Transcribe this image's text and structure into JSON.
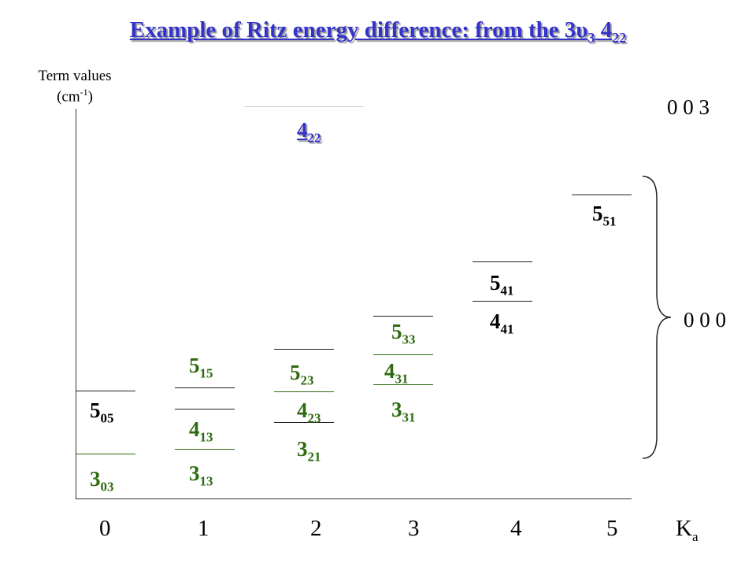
{
  "title": {
    "main": "Example of Ritz energy difference: from the 3υ",
    "sub1": "3",
    "mid": " 4",
    "sub2": "22"
  },
  "axis": {
    "title": "Term values",
    "unit_open": "(cm",
    "unit_sup": "-1",
    "unit_close": ")",
    "xlabel_main": "K",
    "xlabel_sub": "a"
  },
  "ticks": [
    "0",
    "1",
    "2",
    "3",
    "4",
    "5"
  ],
  "vibrational_states": {
    "upper": "0 0 3",
    "ground": "0 0 0"
  },
  "levels": [
    {
      "j": "4",
      "kakc": "22",
      "ka": 2,
      "state": "0 0 3"
    },
    {
      "j": "5",
      "kakc": "51",
      "ka": 5,
      "state": "0 0 0"
    },
    {
      "j": "5",
      "kakc": "41",
      "ka": 4,
      "state": "0 0 0"
    },
    {
      "j": "4",
      "kakc": "41",
      "ka": 4,
      "state": "0 0 0"
    },
    {
      "j": "5",
      "kakc": "33",
      "ka": 3,
      "state": "0 0 0"
    },
    {
      "j": "4",
      "kakc": "31",
      "ka": 3,
      "state": "0 0 0"
    },
    {
      "j": "3",
      "kakc": "31",
      "ka": 3,
      "state": "0 0 0"
    },
    {
      "j": "5",
      "kakc": "23",
      "ka": 2,
      "state": "0 0 0"
    },
    {
      "j": "4",
      "kakc": "23",
      "ka": 2,
      "state": "0 0 0"
    },
    {
      "j": "3",
      "kakc": "21",
      "ka": 2,
      "state": "0 0 0"
    },
    {
      "j": "5",
      "kakc": "15",
      "ka": 1,
      "state": "0 0 0"
    },
    {
      "j": "4",
      "kakc": "13",
      "ka": 1,
      "state": "0 0 0"
    },
    {
      "j": "3",
      "kakc": "13",
      "ka": 1,
      "state": "0 0 0"
    },
    {
      "j": "5",
      "kakc": "05",
      "ka": 0,
      "state": "0 0 0"
    },
    {
      "j": "3",
      "kakc": "03",
      "ka": 0,
      "state": "0 0 0"
    }
  ]
}
